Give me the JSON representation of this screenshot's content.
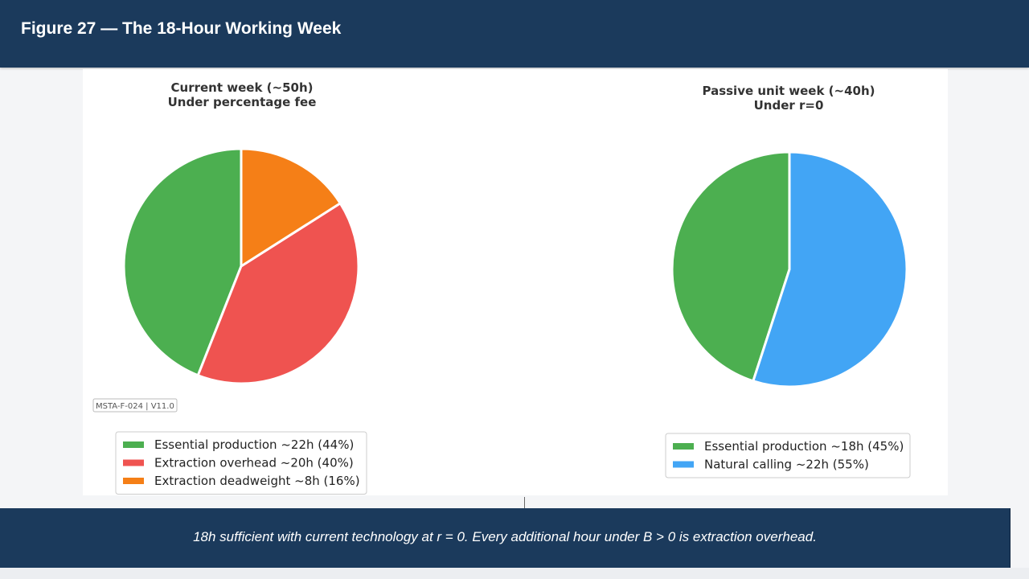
{
  "header": {
    "title": "Figure 27 — The 18-Hour Working Week"
  },
  "caption": {
    "text": "18h sufficient with current technology at r = 0. Every additional hour under B > 0 is extraction overhead."
  },
  "stamp": {
    "text": "MSTA-F-024 | V11.0"
  },
  "colors": {
    "header_bg": "#1b3a5c",
    "essential": "#4caf50",
    "overhead": "#ef5350",
    "deadweight": "#f57f17",
    "natural": "#42a5f5"
  },
  "chart_data": [
    {
      "type": "pie",
      "title": "Current week (~50h)\nUnder percentage fee",
      "title_lines": [
        "Current week (~50h)",
        "Under percentage fee"
      ],
      "slices": [
        {
          "label": "Essential production ~22h (44%)",
          "hours": 22,
          "percent": 44,
          "color": "#4caf50"
        },
        {
          "label": "Extraction overhead ~20h (40%)",
          "hours": 20,
          "percent": 40,
          "color": "#ef5350"
        },
        {
          "label": "Extraction deadweight ~8h (16%)",
          "hours": 8,
          "percent": 16,
          "color": "#f57f17"
        }
      ],
      "start_angle": "top",
      "direction": "counterclockwise",
      "legend_placement": "bottom"
    },
    {
      "type": "pie",
      "title": "Passive unit week (~40h)\nUnder r=0",
      "title_lines": [
        "Passive unit week (~40h)",
        "Under r=0"
      ],
      "slices": [
        {
          "label": "Essential production ~18h (45%)",
          "hours": 18,
          "percent": 45,
          "color": "#4caf50"
        },
        {
          "label": "Natural calling ~22h (55%)",
          "hours": 22,
          "percent": 55,
          "color": "#42a5f5"
        }
      ],
      "start_angle": "top",
      "direction": "counterclockwise",
      "legend_placement": "bottom"
    }
  ]
}
